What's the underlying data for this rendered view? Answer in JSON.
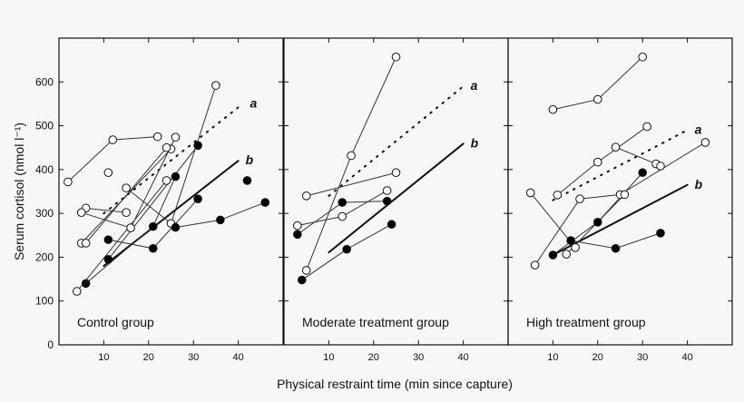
{
  "chart_data": {
    "type": "line",
    "ylabel": "Serum cortisol (nmol l⁻¹)",
    "xlabel": "Physical restraint time (min since capture)",
    "ylim": [
      0,
      700
    ],
    "xlim": [
      0,
      50
    ],
    "yticks": [
      0,
      100,
      200,
      300,
      400,
      500,
      600
    ],
    "xticks": [
      10,
      20,
      30,
      40
    ],
    "colors": {
      "open": "#ffffff",
      "filled": "#000000",
      "line": "#222222"
    },
    "panels": [
      {
        "label": "Control group",
        "series": [
          {
            "marker": "open",
            "points": [
              [
                2,
                372
              ],
              [
                12,
                468
              ],
              [
                22,
                475
              ]
            ]
          },
          {
            "marker": "open",
            "points": [
              [
                11,
                393
              ]
            ]
          },
          {
            "marker": "open",
            "points": [
              [
                6,
                312
              ],
              [
                15,
                302
              ]
            ]
          },
          {
            "marker": "open",
            "points": [
              [
                5,
                302
              ],
              [
                16,
                267
              ],
              [
                26,
                474
              ]
            ]
          },
          {
            "marker": "open",
            "points": [
              [
                5,
                232
              ],
              [
                25,
                447
              ]
            ]
          },
          {
            "marker": "open",
            "points": [
              [
                6,
                232
              ],
              [
                24,
                450
              ]
            ]
          },
          {
            "marker": "open",
            "points": [
              [
                4,
                122
              ],
              [
                24,
                375
              ]
            ]
          },
          {
            "marker": "open",
            "points": [
              [
                15,
                358
              ],
              [
                25,
                277
              ],
              [
                35,
                592
              ]
            ]
          },
          {
            "marker": "filled",
            "points": [
              [
                6,
                140
              ],
              [
                21,
                270
              ],
              [
                26,
                384
              ]
            ]
          },
          {
            "marker": "filled",
            "points": [
              [
                11,
                195
              ],
              [
                31,
                455
              ]
            ]
          },
          {
            "marker": "filled",
            "points": [
              [
                11,
                240
              ],
              [
                21,
                220
              ],
              [
                31,
                333
              ]
            ]
          },
          {
            "marker": "filled",
            "points": [
              [
                26,
                268
              ],
              [
                36,
                285
              ],
              [
                46,
                325
              ]
            ]
          },
          {
            "marker": "filled",
            "points": [
              [
                42,
                375
              ]
            ]
          }
        ],
        "regression": [
          {
            "label": "a",
            "style": "dotted",
            "points": [
              [
                10,
                300
              ],
              [
                41,
                550
              ]
            ]
          },
          {
            "label": "b",
            "style": "solid",
            "points": [
              [
                10,
                180
              ],
              [
                40,
                420
              ]
            ]
          }
        ]
      },
      {
        "label": "Moderate treatment group",
        "series": [
          {
            "marker": "open",
            "points": [
              [
                5,
                170
              ],
              [
                15,
                432
              ],
              [
                25,
                657
              ]
            ]
          },
          {
            "marker": "open",
            "points": [
              [
                5,
                340
              ],
              [
                25,
                393
              ]
            ]
          },
          {
            "marker": "open",
            "points": [
              [
                3,
                272
              ],
              [
                13,
                293
              ],
              [
                23,
                352
              ]
            ]
          },
          {
            "marker": "filled",
            "points": [
              [
                3,
                252
              ],
              [
                13,
                325
              ],
              [
                23,
                328
              ]
            ]
          },
          {
            "marker": "filled",
            "points": [
              [
                4,
                148
              ],
              [
                14,
                218
              ],
              [
                24,
                275
              ]
            ]
          }
        ],
        "regression": [
          {
            "label": "a",
            "style": "dotted",
            "points": [
              [
                10,
                340
              ],
              [
                40,
                590
              ]
            ]
          },
          {
            "label": "b",
            "style": "solid",
            "points": [
              [
                10,
                211
              ],
              [
                40,
                459
              ]
            ]
          }
        ]
      },
      {
        "label": "High treatment group",
        "series": [
          {
            "marker": "open",
            "points": [
              [
                10,
                537
              ],
              [
                20,
                560
              ],
              [
                30,
                657
              ]
            ]
          },
          {
            "marker": "open",
            "points": [
              [
                11,
                342
              ],
              [
                20,
                417
              ],
              [
                31,
                498
              ]
            ]
          },
          {
            "marker": "open",
            "points": [
              [
                24,
                451
              ],
              [
                33,
                413
              ]
            ]
          },
          {
            "marker": "open",
            "points": [
              [
                6,
                182
              ],
              [
                16,
                333
              ],
              [
                25,
                343
              ],
              [
                44,
                462
              ]
            ]
          },
          {
            "marker": "open",
            "points": [
              [
                5,
                347
              ],
              [
                15,
                222
              ]
            ]
          },
          {
            "marker": "open",
            "points": [
              [
                13,
                207
              ],
              [
                26,
                343
              ]
            ]
          },
          {
            "marker": "open",
            "points": [
              [
                34,
                408
              ]
            ]
          },
          {
            "marker": "filled",
            "points": [
              [
                10,
                205
              ],
              [
                20,
                280
              ],
              [
                30,
                393
              ]
            ]
          },
          {
            "marker": "filled",
            "points": [
              [
                14,
                238
              ],
              [
                24,
                220
              ],
              [
                34,
                255
              ]
            ]
          }
        ],
        "regression": [
          {
            "label": "a",
            "style": "dotted",
            "points": [
              [
                10,
                330
              ],
              [
                40,
                490
              ]
            ]
          },
          {
            "label": "b",
            "style": "solid",
            "points": [
              [
                10,
                205
              ],
              [
                40,
                365
              ]
            ]
          }
        ]
      }
    ]
  }
}
